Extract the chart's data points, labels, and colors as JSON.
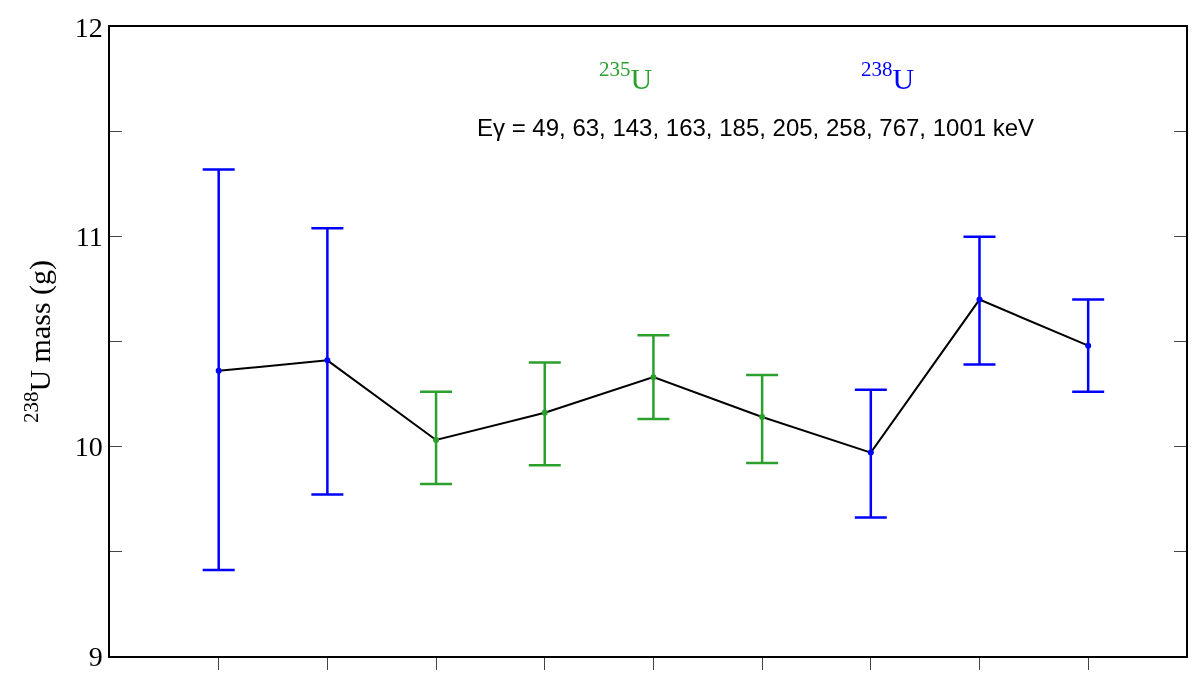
{
  "chart_data": {
    "type": "line",
    "ylabel": "$^{238}$U mass (g)",
    "categories": [
      null,
      null,
      null,
      null,
      null,
      null,
      null,
      null,
      null
    ],
    "series": [
      {
        "color": "#000000",
        "values": [
          10.36,
          10.41,
          10.03,
          10.16,
          10.33,
          10.14,
          9.97,
          10.7,
          10.48
        ]
      },
      {
        "type": "scatter",
        "marker": "circle",
        "name": "$^{235}$U",
        "color": "#2ca02c",
        "values": [
          null,
          null,
          10.03,
          10.16,
          10.33,
          10.14,
          null,
          null,
          null
        ],
        "errors": [
          null,
          null,
          [
            9.82,
            10.26
          ],
          [
            9.91,
            10.4
          ],
          [
            10.13,
            10.53
          ],
          [
            9.92,
            10.34
          ],
          null,
          null,
          null
        ]
      },
      {
        "type": "scatter",
        "marker": "circle",
        "name": "$^{238}$U",
        "color": "#0000ff",
        "values": [
          10.36,
          10.41,
          null,
          null,
          null,
          null,
          9.97,
          10.7,
          10.48
        ],
        "errors": [
          [
            9.41,
            11.32
          ],
          [
            9.77,
            11.04
          ],
          null,
          null,
          null,
          null,
          [
            9.66,
            10.27
          ],
          [
            10.39,
            11.0
          ],
          [
            10.26,
            10.7
          ]
        ]
      }
    ],
    "annotations": [
      "Eγ = 49, 63, 143, 163, 185, 205, 258, 767, 1001 keV"
    ],
    "ylim": [
      9,
      12
    ],
    "yticks": [
      9,
      {
        "value": 9.5,
        "label": null
      },
      10,
      {
        "value": 10.5,
        "label": null
      },
      11,
      {
        "value": 11.5,
        "label": null
      },
      12
    ],
    "line_style": "solid",
    "legend": false
  }
}
